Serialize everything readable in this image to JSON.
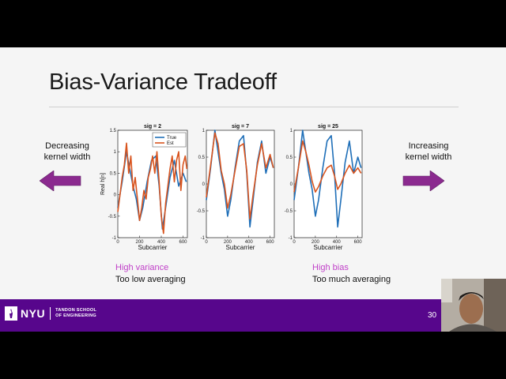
{
  "slide": {
    "title": "Bias-Variance Tradeoff",
    "left_label": "Decreasing\nkernel width",
    "right_label": "Increasing\nkernel width",
    "arrow_color": "#8b2a8f",
    "accent_pink": "#c040c8",
    "footer_color": "#57068c",
    "page_number": "30"
  },
  "captions": {
    "left": {
      "highlight": "High variance",
      "text": "Too low averaging"
    },
    "right": {
      "highlight": "High bias",
      "text": "Too much averaging"
    }
  },
  "footer": {
    "brand": "NYU",
    "school_line1": "TANDON SCHOOL",
    "school_line2": "OF ENGINEERING"
  },
  "chart_data": [
    {
      "type": "line",
      "title": "sig = 2",
      "xlabel": "Subcarrier",
      "ylabel": "Real h[n]",
      "xlim": [
        0,
        640
      ],
      "ylim": [
        -1,
        1.5
      ],
      "xticks": [
        "0",
        "200",
        "400",
        "600"
      ],
      "yticks": [
        "-1",
        "-0.5",
        "0",
        "0.5",
        "1",
        "1.5"
      ],
      "legend": "top-right",
      "legend_entries": [
        "True",
        "Est"
      ],
      "series": [
        {
          "name": "True",
          "color": "#1f6fb8",
          "x": [
            0,
            40,
            80,
            110,
            140,
            170,
            200,
            230,
            270,
            310,
            350,
            380,
            410,
            440,
            480,
            520,
            560,
            600,
            630
          ],
          "y": [
            -0.3,
            0.3,
            1.0,
            0.6,
            0.2,
            -0.1,
            -0.6,
            -0.3,
            0.3,
            0.8,
            0.9,
            0.2,
            -0.8,
            -0.3,
            0.4,
            0.8,
            0.2,
            0.5,
            0.3
          ]
        },
        {
          "name": "Est",
          "color": "#d9541e",
          "x": [
            0,
            20,
            40,
            60,
            80,
            100,
            120,
            140,
            160,
            180,
            200,
            220,
            240,
            260,
            280,
            300,
            320,
            340,
            360,
            380,
            400,
            420,
            440,
            460,
            480,
            500,
            520,
            540,
            560,
            580,
            600,
            620,
            635
          ],
          "y": [
            -0.4,
            0.0,
            0.4,
            0.7,
            1.2,
            0.5,
            0.9,
            0.1,
            0.4,
            -0.1,
            -0.6,
            -0.3,
            0.1,
            -0.1,
            0.4,
            0.6,
            0.9,
            0.5,
            1.0,
            0.3,
            -0.5,
            -0.9,
            -0.2,
            0.2,
            0.6,
            0.9,
            0.3,
            0.8,
            1.0,
            0.1,
            0.7,
            0.9,
            0.6
          ]
        }
      ]
    },
    {
      "type": "line",
      "title": "sig = 7",
      "xlabel": "Subcarrier",
      "xlim": [
        0,
        640
      ],
      "ylim": [
        -1,
        1
      ],
      "xticks": [
        "0",
        "200",
        "400",
        "600"
      ],
      "yticks": [
        "-1",
        "-0.5",
        "0",
        "0.5",
        "1"
      ],
      "series": [
        {
          "name": "True",
          "color": "#1f6fb8",
          "x": [
            0,
            40,
            80,
            110,
            140,
            170,
            200,
            230,
            270,
            310,
            350,
            380,
            410,
            440,
            480,
            520,
            560,
            600,
            630
          ],
          "y": [
            -0.3,
            0.3,
            1.0,
            0.6,
            0.2,
            -0.1,
            -0.6,
            -0.3,
            0.3,
            0.8,
            0.9,
            0.2,
            -0.8,
            -0.3,
            0.4,
            0.8,
            0.2,
            0.5,
            0.3
          ]
        },
        {
          "name": "Est",
          "color": "#d9541e",
          "x": [
            0,
            40,
            80,
            110,
            140,
            170,
            200,
            230,
            270,
            310,
            350,
            380,
            410,
            440,
            480,
            520,
            560,
            600,
            630
          ],
          "y": [
            -0.25,
            0.35,
            0.95,
            0.75,
            0.25,
            0.0,
            -0.45,
            -0.2,
            0.25,
            0.7,
            0.75,
            0.25,
            -0.65,
            -0.2,
            0.35,
            0.75,
            0.3,
            0.55,
            0.3
          ]
        }
      ]
    },
    {
      "type": "line",
      "title": "sig = 25",
      "xlabel": "Subcarrier",
      "xlim": [
        0,
        640
      ],
      "ylim": [
        -1,
        1
      ],
      "xticks": [
        "0",
        "200",
        "400",
        "600"
      ],
      "yticks": [
        "-1",
        "-0.5",
        "0",
        "0.5",
        "1"
      ],
      "series": [
        {
          "name": "True",
          "color": "#1f6fb8",
          "x": [
            0,
            40,
            80,
            110,
            140,
            170,
            200,
            230,
            270,
            310,
            350,
            380,
            410,
            440,
            480,
            520,
            560,
            600,
            630
          ],
          "y": [
            -0.3,
            0.3,
            1.0,
            0.6,
            0.2,
            -0.1,
            -0.6,
            -0.3,
            0.3,
            0.8,
            0.9,
            0.2,
            -0.8,
            -0.3,
            0.4,
            0.8,
            0.2,
            0.5,
            0.3
          ]
        },
        {
          "name": "Est",
          "color": "#d9541e",
          "x": [
            0,
            40,
            80,
            110,
            140,
            170,
            200,
            230,
            270,
            310,
            350,
            380,
            410,
            440,
            480,
            520,
            560,
            600,
            630
          ],
          "y": [
            -0.15,
            0.3,
            0.8,
            0.6,
            0.35,
            0.05,
            -0.15,
            -0.05,
            0.15,
            0.3,
            0.35,
            0.15,
            -0.1,
            0.0,
            0.2,
            0.35,
            0.2,
            0.3,
            0.2
          ]
        }
      ]
    }
  ]
}
